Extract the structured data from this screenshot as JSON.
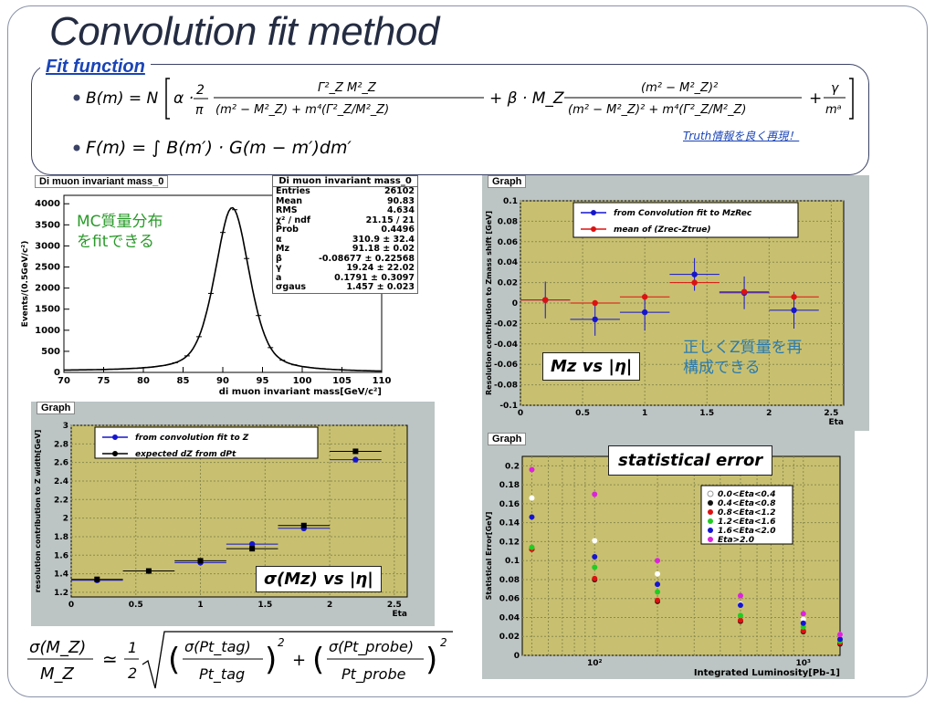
{
  "slide": {
    "title": "Convolution fit method",
    "fit_label": "Fit function",
    "truth_note": "Truth情報を良く再現！",
    "mc_note_line1": "MC質量分布",
    "mc_note_line2": "をfitできる",
    "z_note_line1": "正しくZ質量を再",
    "z_note_line2": "構成できる",
    "callout_mz": "Mz vs |η|",
    "callout_sigma": "σ(Mz) vs |η|",
    "callout_stat": "statistical error"
  },
  "formulas": {
    "b_m": "B(m) = N[α·(2/π)·Γ²_Z M²_Z/((m²−M²_Z)²+m⁴(Γ²_Z/M²_Z)) + β·M_Z(m²−M²_Z)/((m²−M²_Z)²+m⁴(Γ²_Z/M²_Z)) + γ/mᵃ]",
    "f_m": "F(m) = ∫B(m')·G(m−m')dm'",
    "sigma": "σ(M_Z)/M_Z ≃ (1/2)√((σ(Pt_tag)/Pt_tag)² + (σ(Pt_probe)/Pt_probe)²)"
  },
  "colors": {
    "title_text": "#242c42",
    "fit_label": "#1a44b8",
    "plot_panel": "#bcc4c4",
    "plot_area": "#c8c070",
    "blue_series": "#1515d0",
    "red_series": "#dd1111",
    "jp_green": "#2a9a2a",
    "jp_blue": "#2a7ab0"
  },
  "chart_data": [
    {
      "id": "mass",
      "type": "histogram",
      "title": "Di muon invariant mass_0",
      "xlabel": "di muon invariant mass[GeV/c²]",
      "ylabel": "Events/(0.5GeV/c²)",
      "xlim": [
        70,
        110
      ],
      "ylim": [
        0,
        4200
      ],
      "xticks": [
        70,
        75,
        80,
        85,
        90,
        95,
        100,
        105,
        110
      ],
      "yticks": [
        0,
        500,
        1000,
        1500,
        2000,
        2500,
        3000,
        3500,
        4000
      ],
      "peak": {
        "mean": 91.18,
        "sigma": 1.457,
        "height": 3900
      },
      "stats_title": "Di muon invariant mass_0",
      "stats": [
        [
          "Entries",
          "26102"
        ],
        [
          "Mean",
          "90.83"
        ],
        [
          "RMS",
          "4.634"
        ],
        [
          "χ² / ndf",
          "21.15 / 21"
        ],
        [
          "Prob",
          "0.4496"
        ],
        [
          "α",
          "310.9 ± 32.4"
        ],
        [
          "Mz",
          "91.18 ± 0.02"
        ],
        [
          "β",
          "-0.08677 ± 0.22568"
        ],
        [
          "γ",
          "19.24 ± 22.02"
        ],
        [
          "a",
          "0.1791 ± 0.3097"
        ],
        [
          "σgaus",
          "1.457 ± 0.023"
        ]
      ]
    },
    {
      "id": "shift",
      "type": "scatter",
      "title": "Graph",
      "xlabel": "Eta",
      "ylabel": "Resolution contribution to Zmass shift [GeV]",
      "xlim": [
        0,
        2.6
      ],
      "ylim": [
        -0.1,
        0.1
      ],
      "xticks": [
        0,
        0.5,
        1,
        1.5,
        2,
        2.5
      ],
      "yticks": [
        -0.1,
        -0.08,
        -0.06,
        -0.04,
        -0.02,
        0,
        0.02,
        0.04,
        0.06,
        0.08,
        0.1
      ],
      "series": [
        {
          "name": "from Convolution fit to MzRec",
          "color": "#1515d0",
          "x": [
            0.2,
            0.6,
            1.0,
            1.4,
            1.8,
            2.2
          ],
          "y": [
            0.003,
            -0.016,
            -0.009,
            0.028,
            0.01,
            -0.007
          ],
          "yerr": [
            0.018,
            0.016,
            0.018,
            0.016,
            0.016,
            0.018
          ]
        },
        {
          "name": "mean of (Zrec-Ztrue)",
          "color": "#dd1111",
          "x": [
            0.2,
            0.6,
            1.0,
            1.4,
            1.8,
            2.2
          ],
          "y": [
            0.003,
            0.0,
            0.006,
            0.02,
            0.011,
            0.006
          ],
          "yerr": [
            0.0,
            0.0,
            0.0,
            0.0,
            0.0,
            0.0
          ]
        }
      ]
    },
    {
      "id": "width",
      "type": "scatter",
      "title": "Graph",
      "xlabel": "Eta",
      "ylabel": "resolution contribution to Z width[GeV]",
      "xlim": [
        0,
        2.6
      ],
      "ylim": [
        1.15,
        3.0
      ],
      "xticks": [
        0,
        0.5,
        1,
        1.5,
        2,
        2.5
      ],
      "xticklabels": [
        "0",
        "0.5",
        "1",
        "1.5",
        "2",
        "2.5"
      ],
      "yticks": [
        1.2,
        1.4,
        1.6,
        1.8,
        2,
        2.2,
        2.4,
        2.6,
        2.8,
        3
      ],
      "series": [
        {
          "name": "from convolution fit to Z",
          "color": "#1515d0",
          "x": [
            0.2,
            1.0,
            1.4,
            1.8,
            2.2
          ],
          "y": [
            1.33,
            1.52,
            1.72,
            1.89,
            2.63
          ]
        },
        {
          "name": "expected dZ from dPt",
          "color": "#000000",
          "x": [
            0.2,
            0.6,
            1.0,
            1.4,
            1.8,
            2.2
          ],
          "y": [
            1.34,
            1.43,
            1.54,
            1.67,
            1.92,
            2.72
          ]
        }
      ]
    },
    {
      "id": "staterr",
      "type": "scatter",
      "title": "Graph",
      "xlabel": "Integrated Luminosity[Pb-1]",
      "ylabel": "Statistical Error[GeV]",
      "xscale": "log",
      "xlim": [
        45,
        1500
      ],
      "ylim": [
        0,
        0.21
      ],
      "xticks": [
        100,
        1000
      ],
      "xticklabels": [
        "10²",
        "10³"
      ],
      "yticks": [
        0,
        0.02,
        0.04,
        0.06,
        0.08,
        0.1,
        0.12,
        0.14,
        0.16,
        0.18,
        0.2
      ],
      "x": [
        50,
        100,
        200,
        500,
        1000,
        1500
      ],
      "series": [
        {
          "name": "0.0<Eta<0.4",
          "color": "#ffffff",
          "values": [
            0.166,
            0.121,
            0.086,
            0.054,
            0.038,
            0.022
          ]
        },
        {
          "name": "0.4<Eta<0.8",
          "color": "#111111",
          "values": [
            0.112,
            0.08,
            0.057,
            0.036,
            0.025,
            0.012
          ]
        },
        {
          "name": "0.8<Eta<1.2",
          "color": "#dd1111",
          "values": [
            0.112,
            0.081,
            0.058,
            0.037,
            0.026,
            0.013
          ]
        },
        {
          "name": "1.2<Eta<1.6",
          "color": "#22cc22",
          "values": [
            0.114,
            0.093,
            0.067,
            0.042,
            0.03,
            0.015
          ]
        },
        {
          "name": "1.6<Eta<2.0",
          "color": "#1515d0",
          "values": [
            0.146,
            0.104,
            0.075,
            0.053,
            0.034,
            0.017
          ]
        },
        {
          "name": "Eta>2.0",
          "color": "#dd22dd",
          "values": [
            0.196,
            0.17,
            0.1,
            0.063,
            0.044,
            0.022
          ]
        }
      ]
    }
  ]
}
